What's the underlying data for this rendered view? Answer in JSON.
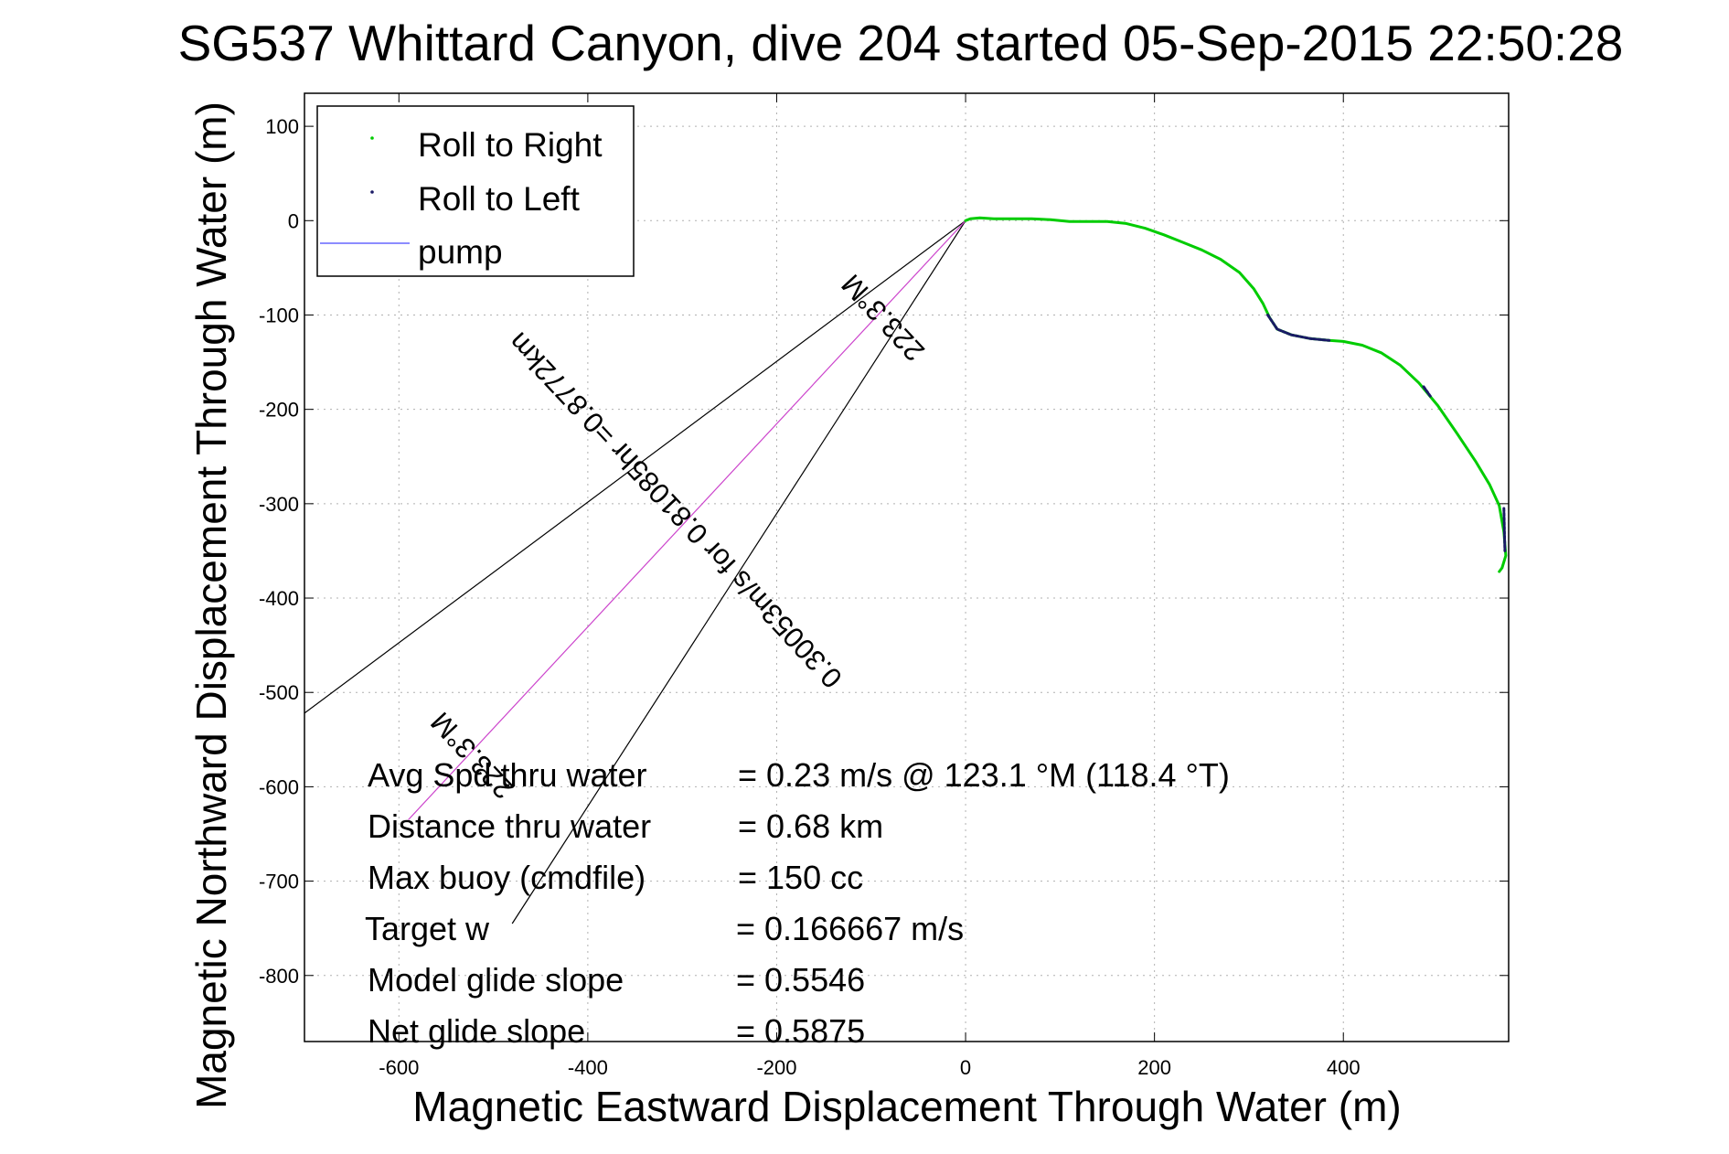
{
  "chart_data": {
    "type": "line",
    "title": "SG537 Whittard Canyon, dive 204 started 05-Sep-2015 22:50:28",
    "xlabel": "Magnetic Eastward Displacement Through Water (m)",
    "ylabel": "Magnetic Northward Displacement Through Water (m)",
    "xlim": [
      -700,
      575
    ],
    "ylim": [
      -870,
      135
    ],
    "xticks": [
      "-600",
      "-400",
      "-200",
      "0",
      "200",
      "400"
    ],
    "yticks": [
      "100",
      "0",
      "-100",
      "-200",
      "-300",
      "-400",
      "-500",
      "-600",
      "-700",
      "-800"
    ],
    "grid": true,
    "legend": {
      "placement": "top-left",
      "entries": [
        "Roll to Right",
        "Roll to Left",
        "pump"
      ]
    },
    "colors": {
      "roll_right": "#00cc00",
      "roll_left": "#1a1a66",
      "pump": "#6666ff",
      "heading_line": "#cc44cc",
      "cone": "#000000"
    },
    "track_xy": [
      [
        0,
        0
      ],
      [
        5,
        2
      ],
      [
        15,
        3
      ],
      [
        30,
        2
      ],
      [
        50,
        2
      ],
      [
        70,
        2
      ],
      [
        90,
        1
      ],
      [
        110,
        -1
      ],
      [
        130,
        -1
      ],
      [
        150,
        -1
      ],
      [
        170,
        -3
      ],
      [
        190,
        -8
      ],
      [
        210,
        -15
      ],
      [
        230,
        -23
      ],
      [
        250,
        -31
      ],
      [
        270,
        -41
      ],
      [
        290,
        -55
      ],
      [
        305,
        -72
      ],
      [
        315,
        -88
      ],
      [
        322,
        -103
      ],
      [
        330,
        -115
      ],
      [
        345,
        -121
      ],
      [
        365,
        -125
      ],
      [
        385,
        -127
      ],
      [
        400,
        -128
      ],
      [
        420,
        -132
      ],
      [
        440,
        -140
      ],
      [
        460,
        -153
      ],
      [
        480,
        -172
      ],
      [
        500,
        -196
      ],
      [
        520,
        -225
      ],
      [
        540,
        -255
      ],
      [
        555,
        -280
      ],
      [
        565,
        -302
      ],
      [
        570,
        -330
      ],
      [
        572,
        -355
      ],
      [
        568,
        -368
      ],
      [
        565,
        -372
      ]
    ],
    "roll_left_segments": [
      [
        [
          320,
          -100
        ],
        [
          330,
          -115
        ],
        [
          345,
          -121
        ],
        [
          365,
          -125
        ],
        [
          385,
          -127
        ]
      ],
      [
        [
          485,
          -176
        ],
        [
          492,
          -186
        ]
      ],
      [
        [
          570,
          -305
        ],
        [
          571,
          -350
        ]
      ]
    ],
    "heading_line": [
      [
        0,
        0
      ],
      [
        -590,
        -635
      ]
    ],
    "cone_lines": [
      [
        [
          0,
          0
        ],
        [
          -700,
          -522
        ]
      ],
      [
        [
          0,
          0
        ],
        [
          -480,
          -745
        ]
      ]
    ],
    "diagonal_annotations": [
      {
        "text": "0.30053m/s for 0.81085hr =0.8772km",
        "at": [
          -300,
          -300
        ],
        "angle_deg": 47
      },
      {
        "text": "223.3°M",
        "at": [
          -80,
          -96
        ],
        "angle_deg": 47
      },
      {
        "text": "223.3°M",
        "at": [
          -515,
          -560
        ],
        "angle_deg": 47
      }
    ],
    "stats": [
      {
        "label": "Avg Spd thru water",
        "value": "=  0.23 m/s @ 123.1 °M (118.4 °T)"
      },
      {
        "label": "Distance thru water",
        "value": "=  0.68 km"
      },
      {
        "label": "Max buoy (cmdfile)",
        "value": "= 150 cc"
      },
      {
        "label": "Target w",
        "value": "= 0.166667 m/s"
      },
      {
        "label": "Model glide slope",
        "value": "= 0.5546"
      },
      {
        "label": "Net glide slope",
        "value": "= 0.5875"
      }
    ]
  }
}
